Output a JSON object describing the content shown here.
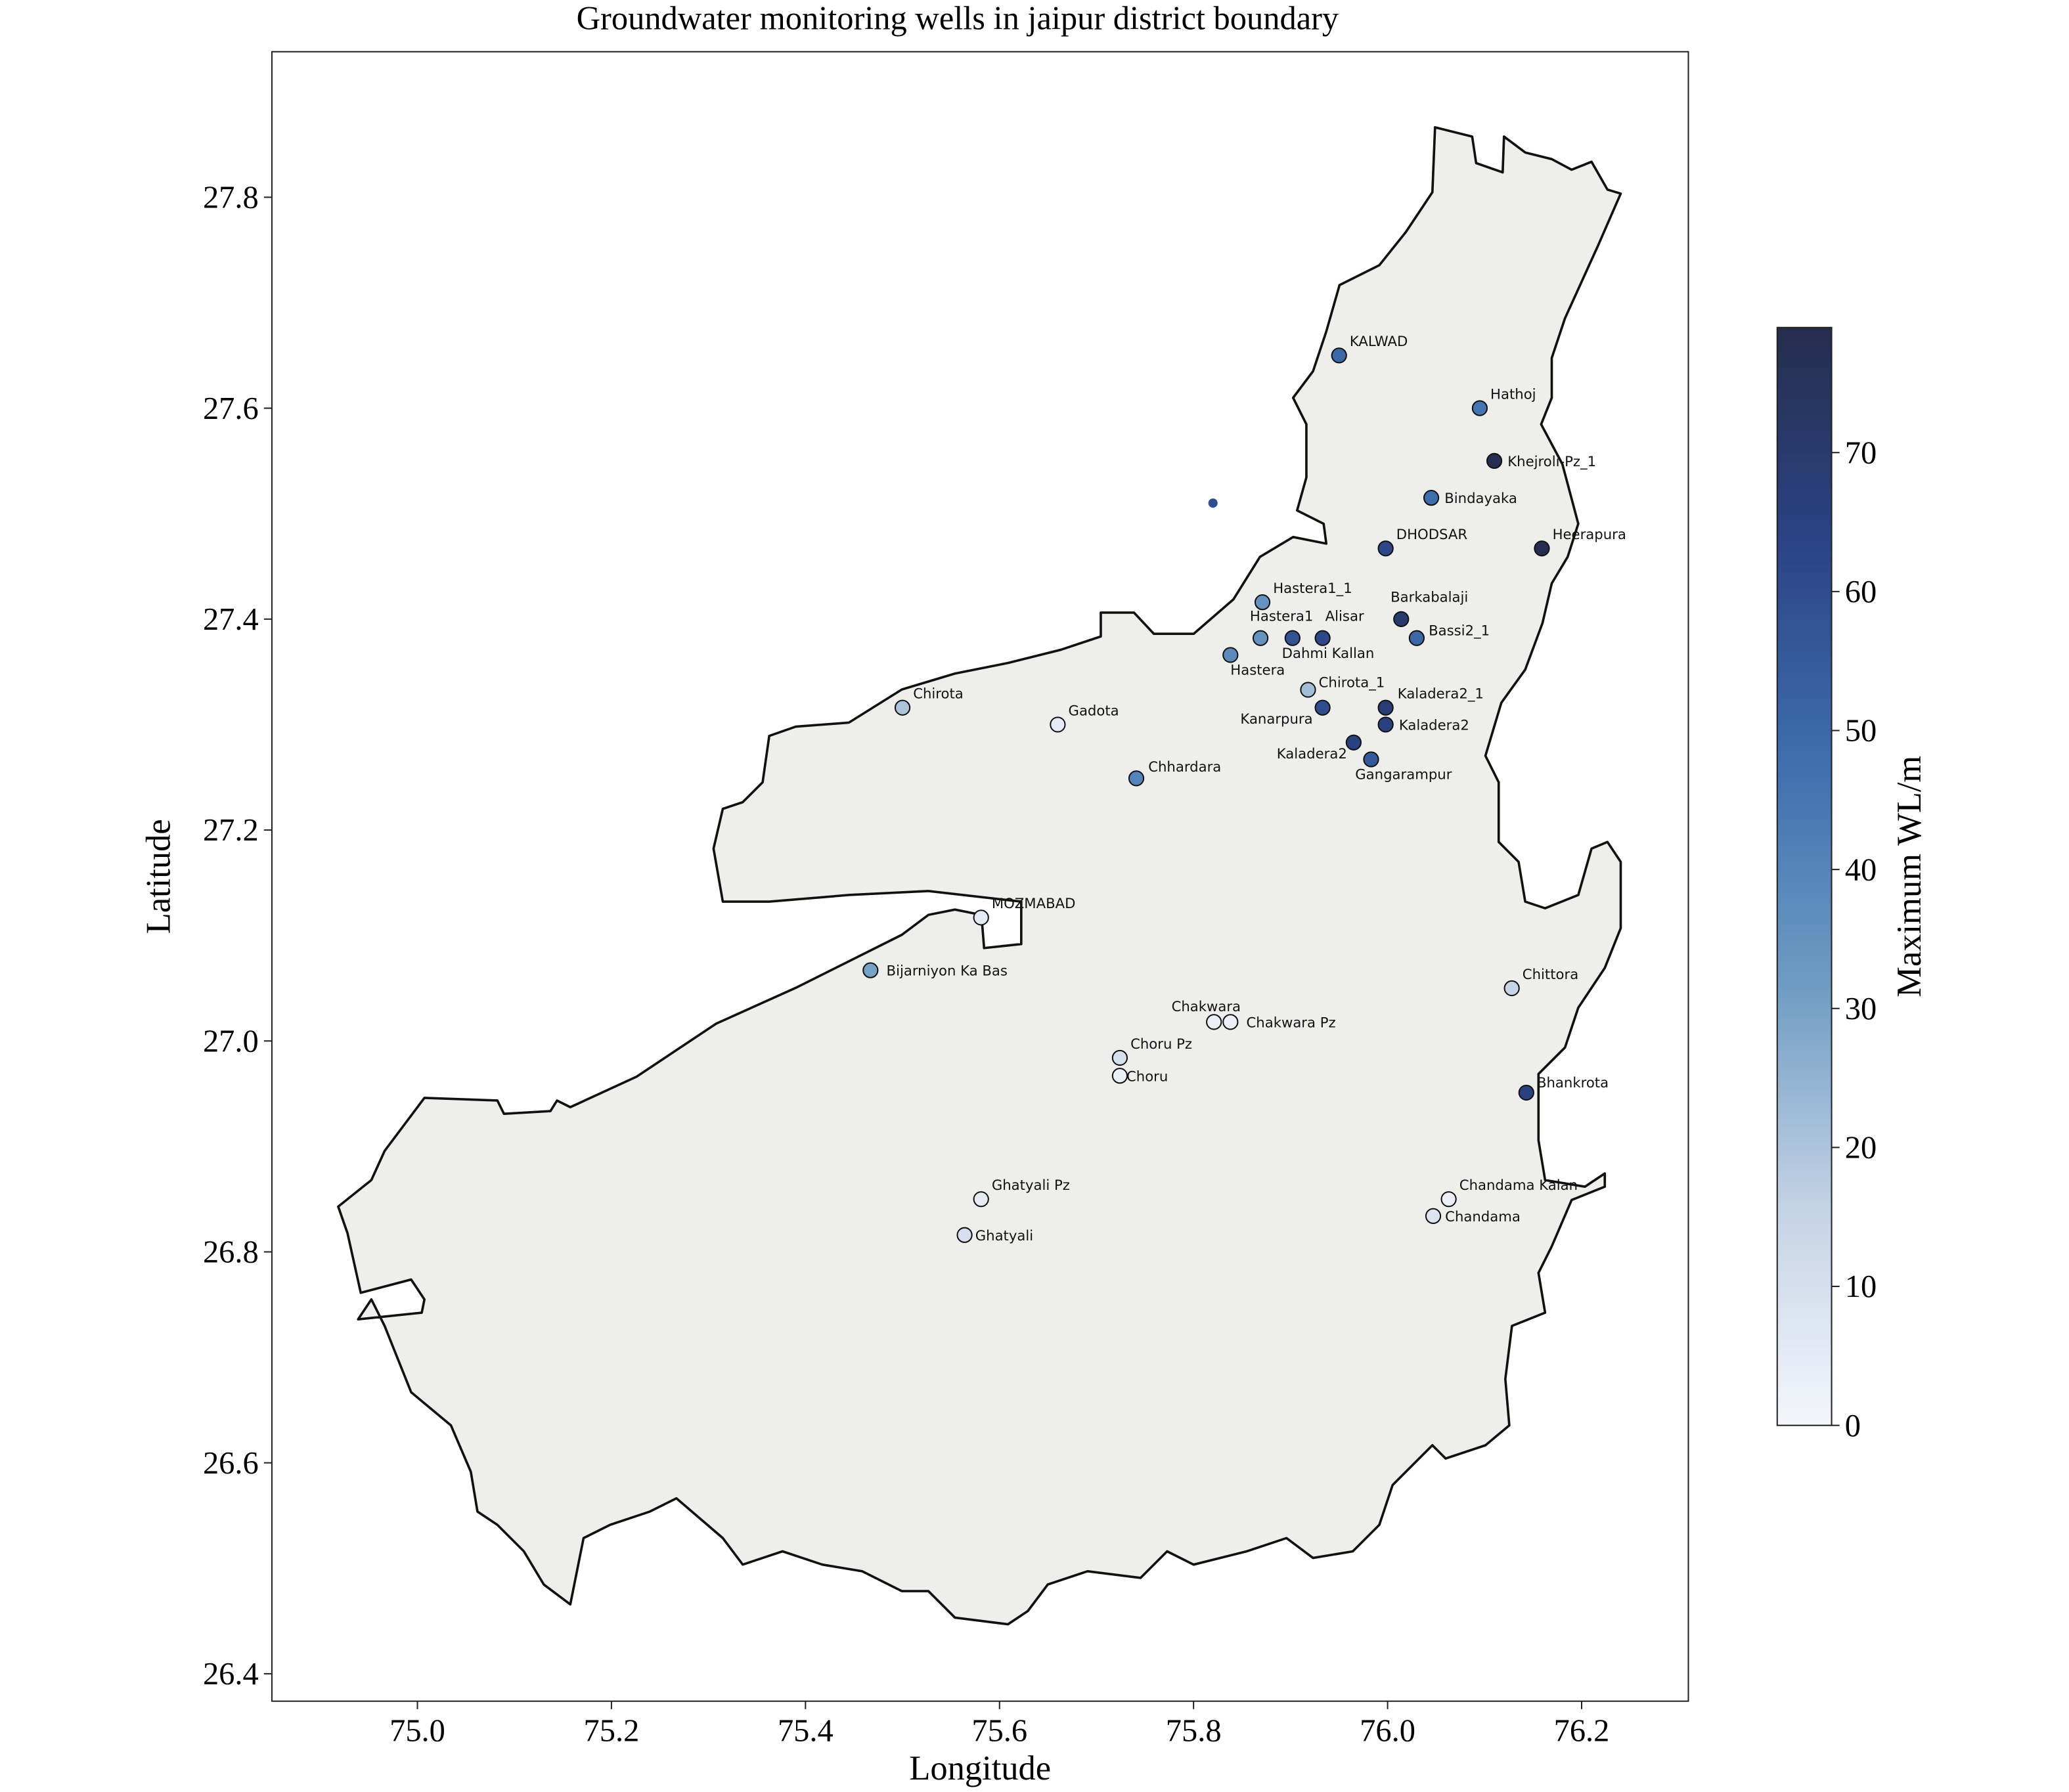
{
  "chart_data": {
    "type": "scatter",
    "title": "Groundwater monitoring wells in jaipur district boundary",
    "x_label": "Longitude",
    "y_label": "Latitude",
    "colorbar_label": "Maximum WL/m",
    "labels": [
      "KALWAD",
      "Hathoj",
      "Khejroli-Pz_1",
      null,
      "Bindayaka",
      "DHODSAR",
      "Heerapura",
      "Hastera1_1",
      "Barkabalaji",
      "Hastera1",
      "Dahmi Kallan",
      "Alisar",
      "Bassi2_1",
      "Hastera",
      "Chirota_1",
      "Kaladera2_1",
      "Kanarpura",
      "Kaladera2",
      "Kaladera2",
      "Gangarampur",
      "Chirota",
      "Gadota",
      "Chhardara",
      "MOZMABAD",
      "Bijarniyon Ka Bas",
      "Chittora",
      "Chakwara",
      "Chakwara Pz",
      "Choru Pz",
      "Choru",
      "Bhankrota",
      "Chandama Kalan",
      "Chandama",
      "Ghatyali Pz",
      "Ghatyali"
    ],
    "x": [
      75.95,
      76.095,
      76.11,
      75.82,
      76.045,
      75.998,
      76.159,
      75.871,
      76.014,
      75.869,
      75.902,
      75.933,
      76.03,
      75.838,
      75.918,
      75.998,
      75.933,
      75.998,
      75.965,
      75.983,
      75.5,
      75.66,
      75.741,
      75.581,
      75.467,
      76.128,
      75.821,
      75.838,
      75.724,
      75.724,
      76.143,
      76.063,
      76.047,
      75.581,
      75.564
    ],
    "y": [
      27.65,
      27.6,
      27.55,
      27.51,
      27.515,
      27.467,
      27.467,
      27.416,
      27.4,
      27.382,
      27.382,
      27.382,
      27.382,
      27.366,
      27.333,
      27.316,
      27.316,
      27.3,
      27.283,
      27.267,
      27.316,
      27.3,
      27.249,
      27.117,
      27.067,
      27.05,
      27.018,
      27.018,
      26.984,
      26.967,
      26.951,
      26.85,
      26.834,
      26.85,
      26.816
    ],
    "values": [
      50,
      45,
      78,
      60,
      48,
      62,
      78,
      35,
      70,
      35,
      58,
      62,
      50,
      38,
      22,
      68,
      60,
      65,
      65,
      55,
      20,
      5,
      40,
      5,
      30,
      15,
      3,
      3,
      10,
      3,
      65,
      3,
      8,
      5,
      10
    ],
    "xlim": [
      74.85,
      76.31
    ],
    "ylim": [
      26.374,
      27.938
    ],
    "xticks": [
      {
        "value": 75,
        "label": "75.0"
      },
      75.2,
      75.4,
      75.6,
      75.8,
      {
        "value": 76,
        "label": "76.0"
      },
      76.2
    ],
    "yticks": [
      26.4,
      26.6,
      26.8,
      {
        "value": 27,
        "label": "27.0"
      },
      27.2,
      27.4,
      27.6,
      27.8
    ],
    "clim": [
      0,
      79
    ],
    "cticks": [
      0,
      10,
      20,
      30,
      40,
      50,
      60,
      70
    ],
    "colormap": [
      "#f4f6fb",
      "#c3d2e5",
      "#6f9cc3",
      "#3f6fae",
      "#2b4486",
      "#252d4c"
    ]
  }
}
